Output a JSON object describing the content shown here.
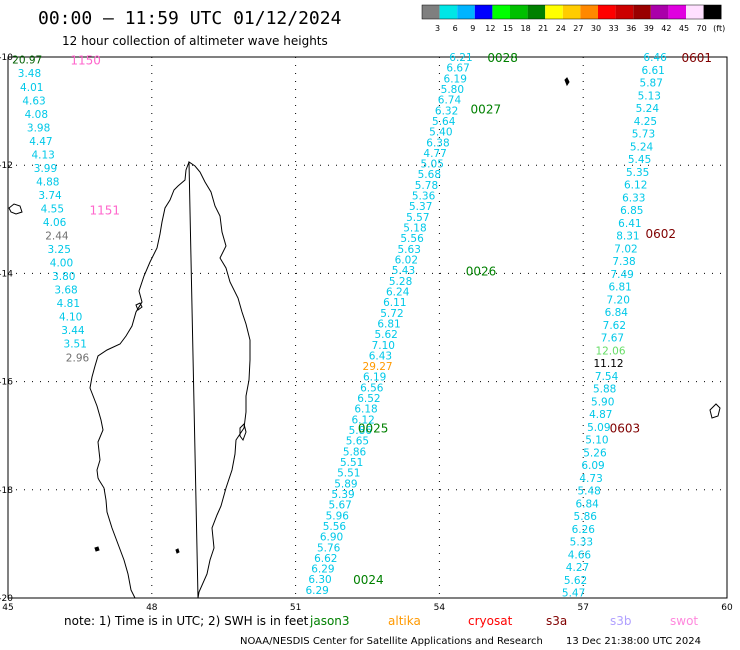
{
  "title": "00:00 – 11:59 UTC 01/12/2024",
  "subtitle": "12 hour collection of altimeter wave heights",
  "color_scale": {
    "values": [
      "3",
      "6",
      "9",
      "12",
      "15",
      "18",
      "21",
      "24",
      "27",
      "30",
      "33",
      "36",
      "39",
      "42",
      "45",
      "70",
      "(ft)"
    ],
    "colors": [
      "#7f7f7f",
      "#00e6e6",
      "#00b4ff",
      "#0000ff",
      "#00ff00",
      "#00c000",
      "#008000",
      "#ffff00",
      "#ffcc00",
      "#ff8800",
      "#ff0000",
      "#cc0000",
      "#990000",
      "#aa00aa",
      "#e000e0",
      "#ffe0ff",
      "#000000"
    ]
  },
  "axes": {
    "lon_labels": [
      "45",
      "48",
      "51",
      "54",
      "57",
      "60"
    ],
    "lat_labels": [
      "-10",
      "-12",
      "-14",
      "-16",
      "-18",
      "-20"
    ]
  },
  "pass_labels": [
    {
      "id": "1150",
      "text": "1150",
      "color": "#ff66cc",
      "lon": 46.3,
      "lat": -10.05
    },
    {
      "id": "1151",
      "text": "1151",
      "color": "#ff66cc",
      "lon": 46.7,
      "lat": -12.82
    },
    {
      "id": "0028",
      "text": "0028",
      "color": "#008000",
      "lon": 55.0,
      "lat": -10.0
    },
    {
      "id": "0027",
      "text": "0027",
      "color": "#008000",
      "lon": 54.65,
      "lat": -10.95
    },
    {
      "id": "0026",
      "text": "0026",
      "color": "#008000",
      "lon": 54.55,
      "lat": -13.95
    },
    {
      "id": "0025",
      "text": "0025",
      "color": "#008000",
      "lon": 52.3,
      "lat": -16.85
    },
    {
      "id": "0024",
      "text": "0024",
      "color": "#008000",
      "lon": 52.2,
      "lat": -19.65
    },
    {
      "id": "0601",
      "text": "0601",
      "color": "#800000",
      "lon": 59.05,
      "lat": -10.0
    },
    {
      "id": "0602",
      "text": "0602",
      "color": "#800000",
      "lon": 58.3,
      "lat": -13.25
    },
    {
      "id": "0603",
      "text": "0603",
      "color": "#800000",
      "lon": 57.55,
      "lat": -16.85
    }
  ],
  "observation_tracks": [
    {
      "id": "track-1150-1151",
      "color": "#00c8e8",
      "lon_start": 45.4,
      "lat_start": -10.05,
      "lon_end": 46.45,
      "lat_end": -15.55,
      "values": [
        "20.97",
        "3.48",
        "4.01",
        "4.63",
        "4.08",
        "3.98",
        "4.47",
        "4.13",
        "3.99",
        "4.88",
        "3.74",
        "4.55",
        "4.06",
        "2.44",
        "3.25",
        "4.00",
        "3.80",
        "3.68",
        "4.81",
        "4.10",
        "3.44",
        "3.51",
        "2.96"
      ]
    },
    {
      "id": "track-0028-0024",
      "color": "#00c8e8",
      "lon_start": 54.45,
      "lat_start": -10.0,
      "lon_end": 51.45,
      "lat_end": -19.85,
      "values": [
        "6.21",
        "6.67",
        "6.19",
        "5.80",
        "6.74",
        "6.32",
        "5.64",
        "5.40",
        "6.38",
        "4.77",
        "5.05",
        "5.68",
        "5.78",
        "5.36",
        "5.37",
        "5.57",
        "5.18",
        "5.56",
        "5.63",
        "6.02",
        "5.43",
        "5.28",
        "6.24",
        "6.11",
        "5.72",
        "6.81",
        "5.62",
        "7.10",
        "6.43",
        "29.27",
        "6.19",
        "6.56",
        "6.52",
        "6.18",
        "6.12",
        "5.86",
        "5.65",
        "5.86",
        "5.51",
        "5.51",
        "5.89",
        "5.39",
        "5.67",
        "5.96",
        "5.56",
        "6.90",
        "5.76",
        "6.62",
        "6.29",
        "6.30",
        "6.29"
      ]
    },
    {
      "id": "track-0601-0603",
      "color": "#00c8e8",
      "lon_start": 58.5,
      "lat_start": -10.0,
      "lon_end": 56.8,
      "lat_end": -19.9,
      "values": [
        "6.46",
        "6.61",
        "5.87",
        "5.13",
        "5.24",
        "4.25",
        "5.73",
        "5.24",
        "5.45",
        "5.35",
        "6.12",
        "6.33",
        "6.85",
        "6.41",
        "8.31",
        "7.02",
        "7.38",
        "7.49",
        "6.81",
        "7.20",
        "6.84",
        "7.62",
        "7.67",
        "12.06",
        "11.12",
        "7.54",
        "5.88",
        "5.90",
        "4.87",
        "5.09",
        "5.10",
        "5.26",
        "6.09",
        "4.73",
        "5.48",
        "6.84",
        "5.86",
        "6.26",
        "5.33",
        "4.66",
        "4.27",
        "5.62",
        "5.47"
      ]
    }
  ],
  "special_values": {
    "20.97": "#006000",
    "2.44": "#707070",
    "2.96": "#707070",
    "29.27": "#ff9900",
    "12.06": "#66dd66",
    "11.12": "#000000"
  },
  "note": "note:  1) Time is in UTC;  2) SWH is in feet",
  "legend": [
    {
      "name": "jason3",
      "color": "#008000"
    },
    {
      "name": "altika",
      "color": "#ff9900"
    },
    {
      "name": "cryosat",
      "color": "#ff0000"
    },
    {
      "name": "s3a",
      "color": "#800000"
    },
    {
      "name": "s3b",
      "color": "#b0a0ff"
    },
    {
      "name": "swot",
      "color": "#ff88dd"
    }
  ],
  "credit_left": "NOAA/NESDIS Center for Satellite Applications and Research",
  "credit_right": "13 Dec 21:38:00 UTC 2024"
}
